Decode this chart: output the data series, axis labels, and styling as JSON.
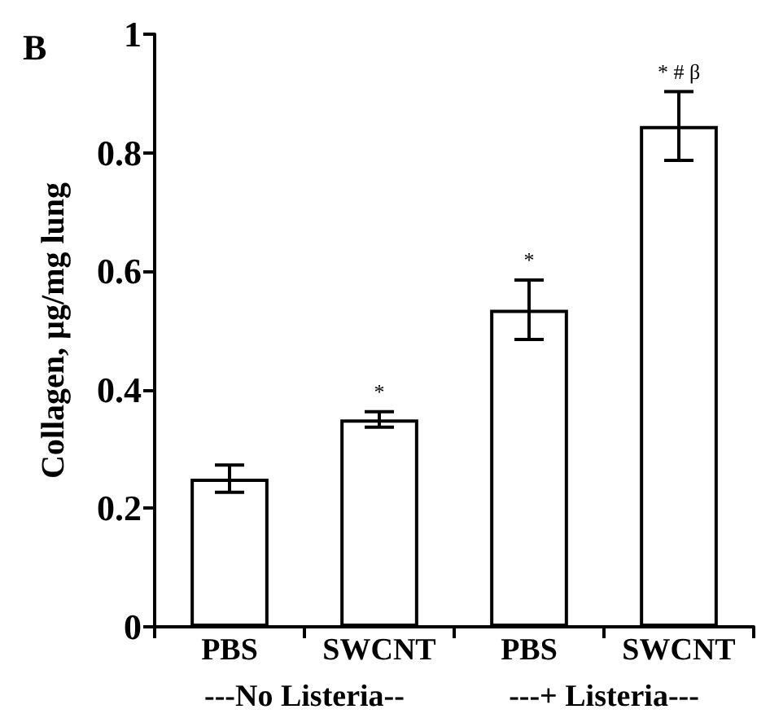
{
  "chart_data": {
    "type": "bar",
    "ylabel": "Collagen, µg/mg lung",
    "categories": [
      "PBS",
      "SWCNT",
      "PBS",
      "SWCNT"
    ],
    "values": [
      0.25,
      0.35,
      0.535,
      0.845
    ],
    "errors": [
      0.023,
      0.013,
      0.05,
      0.058
    ],
    "value_labels": [
      null,
      "*",
      "*",
      "* # β"
    ],
    "color": "#ffffff",
    "ylim": [
      0,
      1
    ],
    "yticks": [
      0,
      0.2,
      0.4,
      0.6,
      0.8,
      1
    ],
    "grid": false,
    "annotations": [
      "B",
      "---No Listeria--",
      "---+ Listeria---"
    ]
  }
}
